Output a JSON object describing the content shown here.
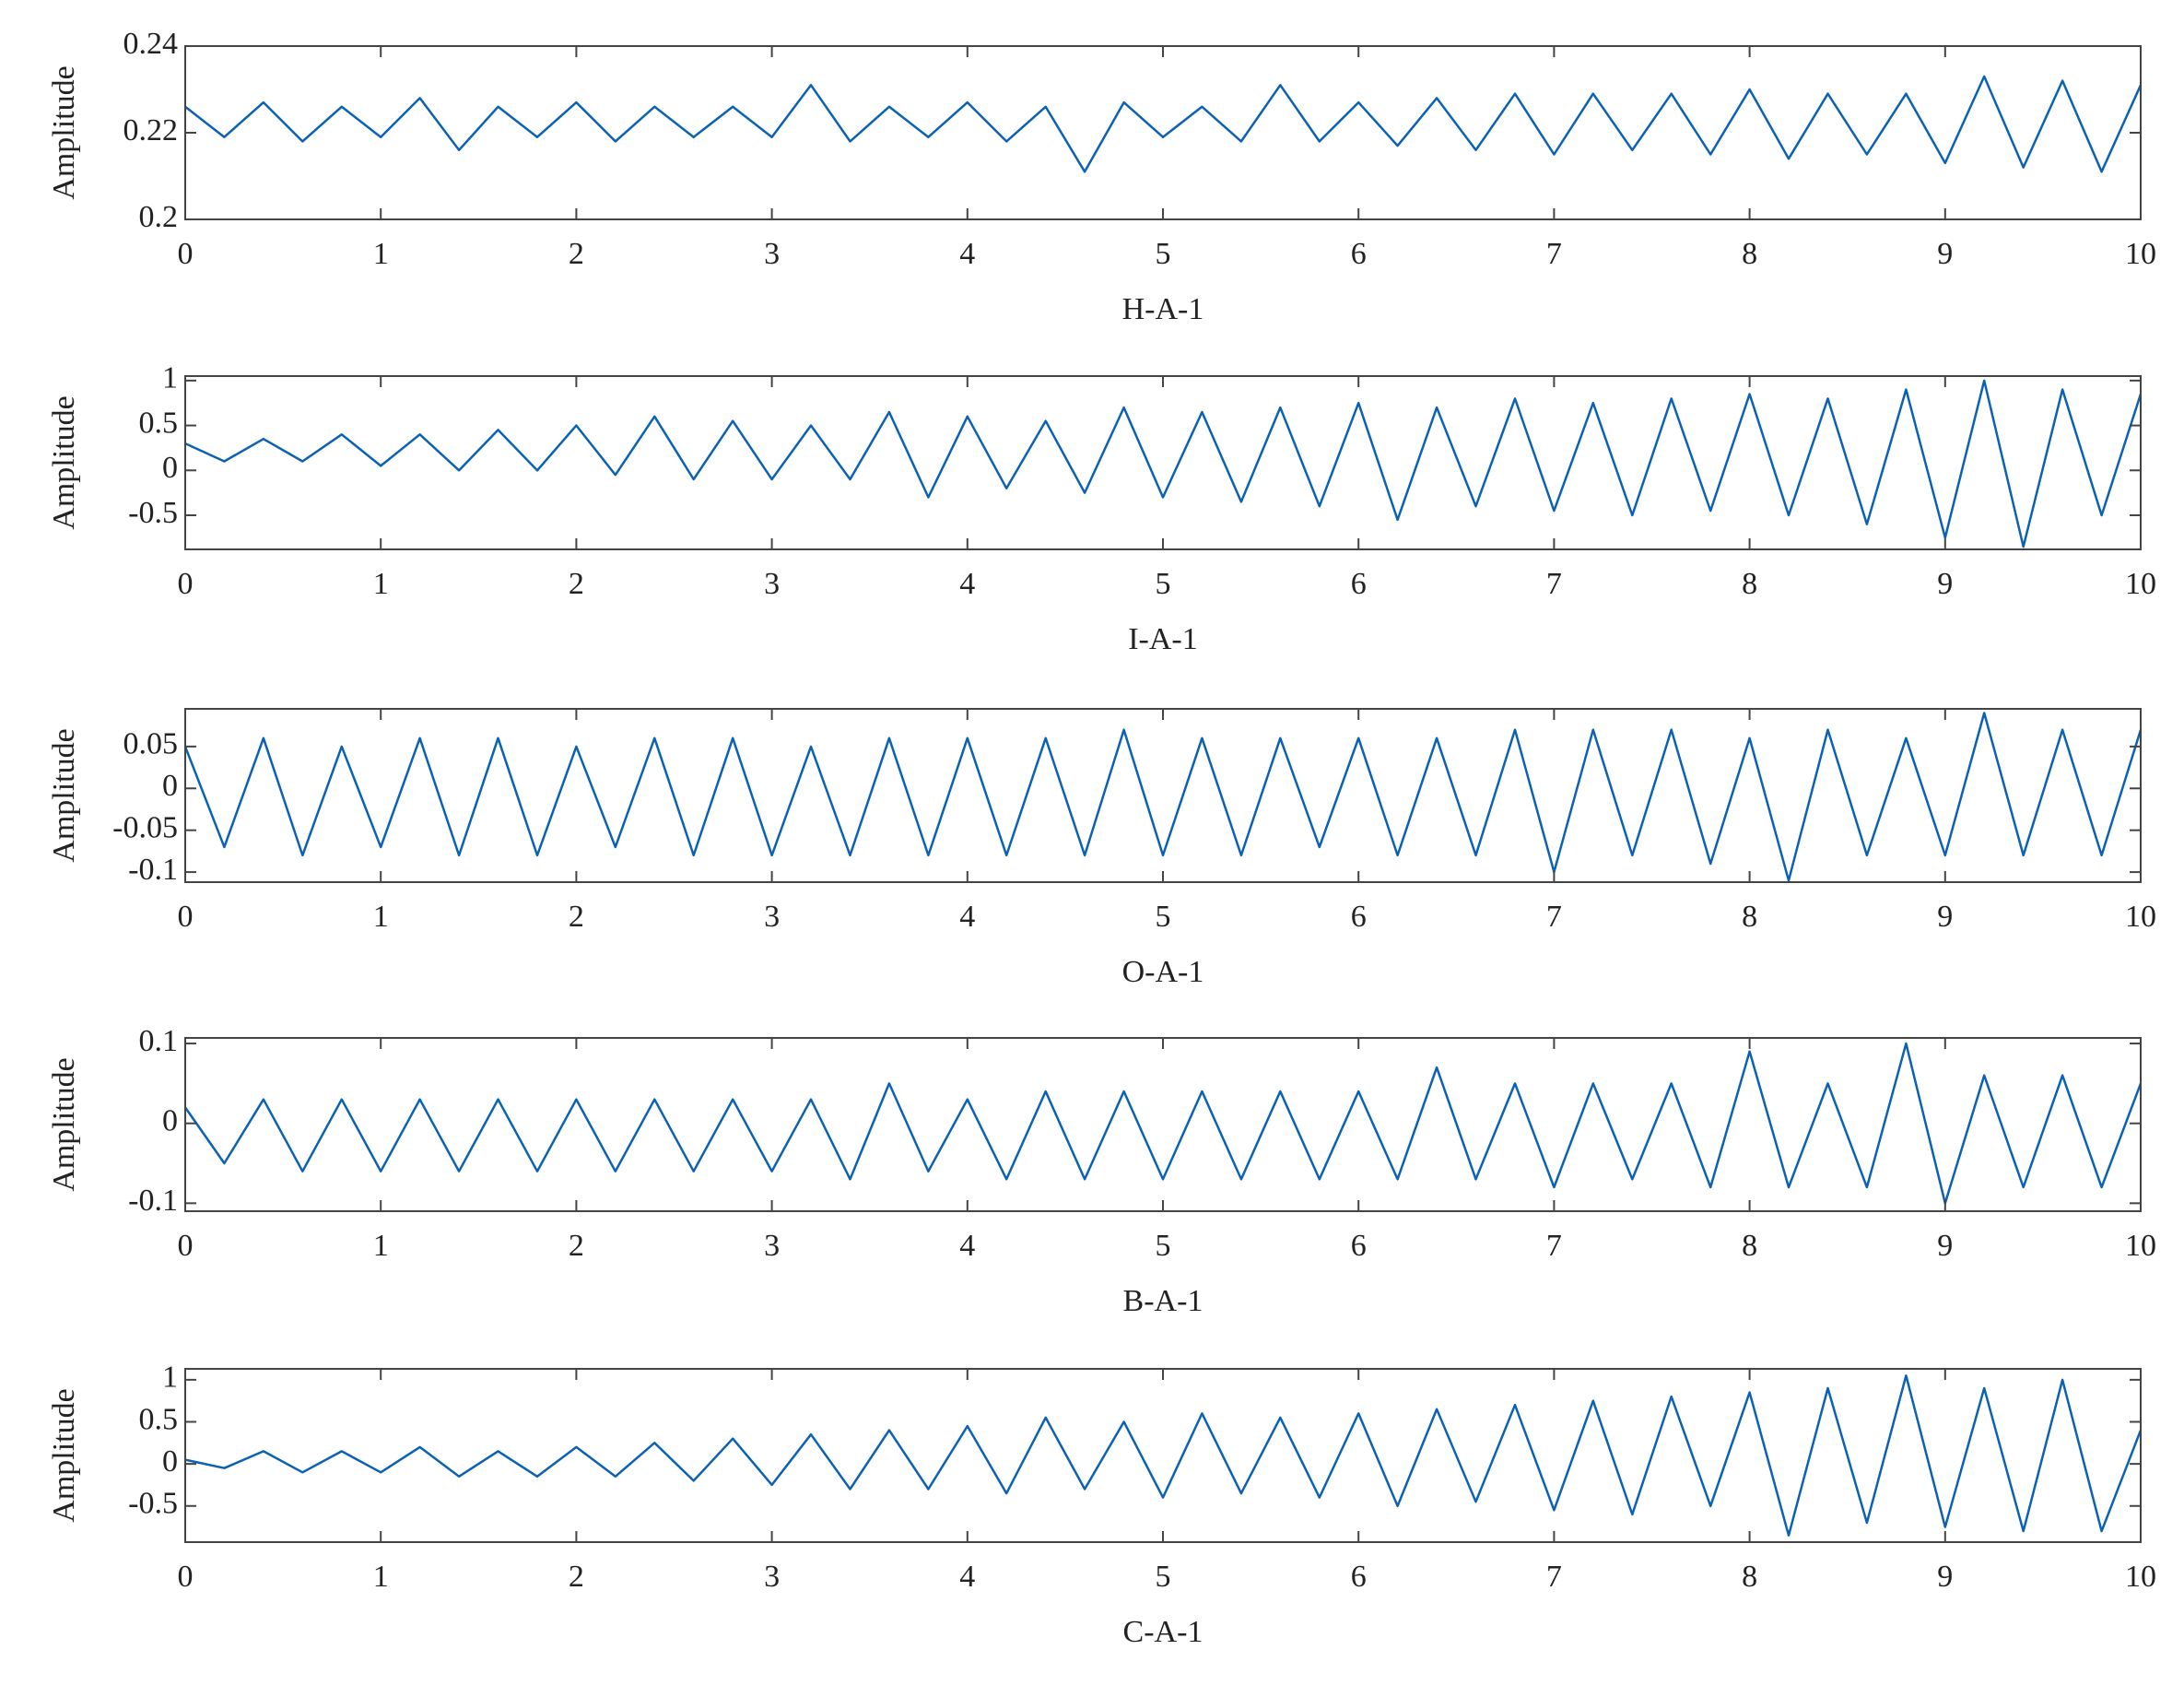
{
  "chart_data": [
    {
      "type": "line",
      "xlabel": "H-A-1",
      "ylabel": "Amplitude",
      "color": "#0b62b5",
      "xlim": [
        0,
        10
      ],
      "xticks": [
        0,
        1,
        2,
        3,
        4,
        5,
        6,
        7,
        8,
        9,
        10
      ],
      "ylim": [
        0.2,
        0.24
      ],
      "yticks": [
        0.2,
        0.22,
        0.24
      ],
      "x": [
        0,
        0.2,
        0.4,
        0.6,
        0.8,
        1,
        1.2,
        1.4,
        1.6,
        1.8,
        2,
        2.2,
        2.4,
        2.6,
        2.8,
        3,
        3.2,
        3.4,
        3.6,
        3.8,
        4,
        4.2,
        4.4,
        4.6,
        4.8,
        5,
        5.2,
        5.4,
        5.6,
        5.8,
        6,
        6.2,
        6.4,
        6.6,
        6.8,
        7,
        7.2,
        7.4,
        7.6,
        7.8,
        8,
        8.2,
        8.4,
        8.6,
        8.8,
        9,
        9.2,
        9.4,
        9.6,
        9.8,
        10
      ],
      "values": [
        0.226,
        0.219,
        0.227,
        0.218,
        0.226,
        0.219,
        0.228,
        0.216,
        0.226,
        0.219,
        0.227,
        0.218,
        0.226,
        0.219,
        0.226,
        0.219,
        0.231,
        0.218,
        0.226,
        0.219,
        0.227,
        0.218,
        0.226,
        0.211,
        0.227,
        0.219,
        0.226,
        0.218,
        0.231,
        0.218,
        0.227,
        0.217,
        0.228,
        0.216,
        0.229,
        0.215,
        0.229,
        0.216,
        0.229,
        0.215,
        0.23,
        0.214,
        0.229,
        0.215,
        0.229,
        0.213,
        0.233,
        0.212,
        0.232,
        0.211,
        0.231
      ]
    },
    {
      "type": "line",
      "xlabel": "I-A-1",
      "ylabel": "Amplitude",
      "color": "#0b62b5",
      "xlim": [
        0,
        10
      ],
      "xticks": [
        0,
        1,
        2,
        3,
        4,
        5,
        6,
        7,
        8,
        9,
        10
      ],
      "ylim": [
        -0.88,
        1.05
      ],
      "yticks": [
        -0.5,
        0,
        0.5,
        1
      ],
      "x": [
        0,
        0.2,
        0.4,
        0.6,
        0.8,
        1,
        1.2,
        1.4,
        1.6,
        1.8,
        2,
        2.2,
        2.4,
        2.6,
        2.8,
        3,
        3.2,
        3.4,
        3.6,
        3.8,
        4,
        4.2,
        4.4,
        4.6,
        4.8,
        5,
        5.2,
        5.4,
        5.6,
        5.8,
        6,
        6.2,
        6.4,
        6.6,
        6.8,
        7,
        7.2,
        7.4,
        7.6,
        7.8,
        8,
        8.2,
        8.4,
        8.6,
        8.8,
        9,
        9.2,
        9.4,
        9.6,
        9.8,
        10
      ],
      "values": [
        0.3,
        0.1,
        0.35,
        0.1,
        0.4,
        0.05,
        0.4,
        0.0,
        0.45,
        0.0,
        0.5,
        -0.05,
        0.6,
        -0.1,
        0.55,
        -0.1,
        0.5,
        -0.1,
        0.65,
        -0.3,
        0.6,
        -0.2,
        0.55,
        -0.25,
        0.7,
        -0.3,
        0.65,
        -0.35,
        0.7,
        -0.4,
        0.75,
        -0.55,
        0.7,
        -0.4,
        0.8,
        -0.45,
        0.75,
        -0.5,
        0.8,
        -0.45,
        0.85,
        -0.5,
        0.8,
        -0.6,
        0.9,
        -0.75,
        1.0,
        -0.85,
        0.9,
        -0.5,
        0.85
      ]
    },
    {
      "type": "line",
      "xlabel": "O-A-1",
      "ylabel": "Amplitude",
      "color": "#0b62b5",
      "xlim": [
        0,
        10
      ],
      "xticks": [
        0,
        1,
        2,
        3,
        4,
        5,
        6,
        7,
        8,
        9,
        10
      ],
      "ylim": [
        -0.112,
        0.095
      ],
      "yticks": [
        -0.1,
        -0.05,
        0,
        0.05
      ],
      "x": [
        0,
        0.2,
        0.4,
        0.6,
        0.8,
        1,
        1.2,
        1.4,
        1.6,
        1.8,
        2,
        2.2,
        2.4,
        2.6,
        2.8,
        3,
        3.2,
        3.4,
        3.6,
        3.8,
        4,
        4.2,
        4.4,
        4.6,
        4.8,
        5,
        5.2,
        5.4,
        5.6,
        5.8,
        6,
        6.2,
        6.4,
        6.6,
        6.8,
        7,
        7.2,
        7.4,
        7.6,
        7.8,
        8,
        8.2,
        8.4,
        8.6,
        8.8,
        9,
        9.2,
        9.4,
        9.6,
        9.8,
        10
      ],
      "values": [
        0.05,
        -0.07,
        0.06,
        -0.08,
        0.05,
        -0.07,
        0.06,
        -0.08,
        0.06,
        -0.08,
        0.05,
        -0.07,
        0.06,
        -0.08,
        0.06,
        -0.08,
        0.05,
        -0.08,
        0.06,
        -0.08,
        0.06,
        -0.08,
        0.06,
        -0.08,
        0.07,
        -0.08,
        0.06,
        -0.08,
        0.06,
        -0.07,
        0.06,
        -0.08,
        0.06,
        -0.08,
        0.07,
        -0.1,
        0.07,
        -0.08,
        0.07,
        -0.09,
        0.06,
        -0.11,
        0.07,
        -0.08,
        0.06,
        -0.08,
        0.09,
        -0.08,
        0.07,
        -0.08,
        0.07
      ]
    },
    {
      "type": "line",
      "xlabel": "B-A-1",
      "ylabel": "Amplitude",
      "color": "#0b62b5",
      "xlim": [
        0,
        10
      ],
      "xticks": [
        0,
        1,
        2,
        3,
        4,
        5,
        6,
        7,
        8,
        9,
        10
      ],
      "ylim": [
        -0.11,
        0.107
      ],
      "yticks": [
        -0.1,
        0,
        0.1
      ],
      "x": [
        0,
        0.2,
        0.4,
        0.6,
        0.8,
        1,
        1.2,
        1.4,
        1.6,
        1.8,
        2,
        2.2,
        2.4,
        2.6,
        2.8,
        3,
        3.2,
        3.4,
        3.6,
        3.8,
        4,
        4.2,
        4.4,
        4.6,
        4.8,
        5,
        5.2,
        5.4,
        5.6,
        5.8,
        6,
        6.2,
        6.4,
        6.6,
        6.8,
        7,
        7.2,
        7.4,
        7.6,
        7.8,
        8,
        8.2,
        8.4,
        8.6,
        8.8,
        9,
        9.2,
        9.4,
        9.6,
        9.8,
        10
      ],
      "values": [
        0.02,
        -0.05,
        0.03,
        -0.06,
        0.03,
        -0.06,
        0.03,
        -0.06,
        0.03,
        -0.06,
        0.03,
        -0.06,
        0.03,
        -0.06,
        0.03,
        -0.06,
        0.03,
        -0.07,
        0.05,
        -0.06,
        0.03,
        -0.07,
        0.04,
        -0.07,
        0.04,
        -0.07,
        0.04,
        -0.07,
        0.04,
        -0.07,
        0.04,
        -0.07,
        0.07,
        -0.07,
        0.05,
        -0.08,
        0.05,
        -0.07,
        0.05,
        -0.08,
        0.09,
        -0.08,
        0.05,
        -0.08,
        0.1,
        -0.1,
        0.06,
        -0.08,
        0.06,
        -0.08,
        0.05
      ]
    },
    {
      "type": "line",
      "xlabel": "C-A-1",
      "ylabel": "Amplitude",
      "color": "#0b62b5",
      "xlim": [
        0,
        10
      ],
      "xticks": [
        0,
        1,
        2,
        3,
        4,
        5,
        6,
        7,
        8,
        9,
        10
      ],
      "ylim": [
        -0.93,
        1.13
      ],
      "yticks": [
        -0.5,
        0,
        0.5,
        1
      ],
      "x": [
        0,
        0.2,
        0.4,
        0.6,
        0.8,
        1,
        1.2,
        1.4,
        1.6,
        1.8,
        2,
        2.2,
        2.4,
        2.6,
        2.8,
        3,
        3.2,
        3.4,
        3.6,
        3.8,
        4,
        4.2,
        4.4,
        4.6,
        4.8,
        5,
        5.2,
        5.4,
        5.6,
        5.8,
        6,
        6.2,
        6.4,
        6.6,
        6.8,
        7,
        7.2,
        7.4,
        7.6,
        7.8,
        8,
        8.2,
        8.4,
        8.6,
        8.8,
        9,
        9.2,
        9.4,
        9.6,
        9.8,
        10
      ],
      "values": [
        0.05,
        -0.05,
        0.15,
        -0.1,
        0.15,
        -0.1,
        0.2,
        -0.15,
        0.15,
        -0.15,
        0.2,
        -0.15,
        0.25,
        -0.2,
        0.3,
        -0.25,
        0.35,
        -0.3,
        0.4,
        -0.3,
        0.45,
        -0.35,
        0.55,
        -0.3,
        0.5,
        -0.4,
        0.6,
        -0.35,
        0.55,
        -0.4,
        0.6,
        -0.5,
        0.65,
        -0.45,
        0.7,
        -0.55,
        0.75,
        -0.6,
        0.8,
        -0.5,
        0.85,
        -0.85,
        0.9,
        -0.7,
        1.05,
        -0.75,
        0.9,
        -0.8,
        1.0,
        -0.8,
        0.4
      ]
    }
  ]
}
